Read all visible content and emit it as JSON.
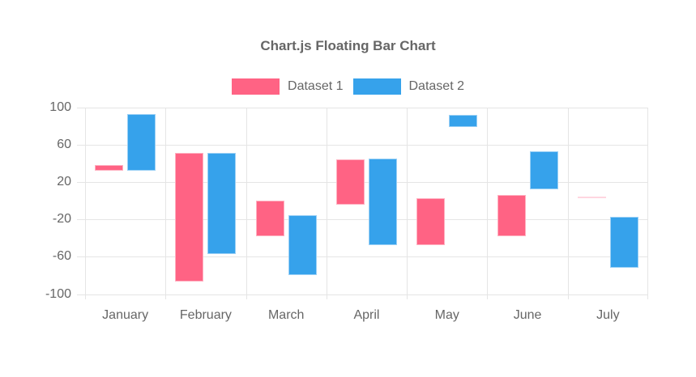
{
  "chart_data": {
    "type": "bar",
    "variant": "floating",
    "title": "Chart.js Floating Bar Chart",
    "categories": [
      "January",
      "February",
      "March",
      "April",
      "May",
      "June",
      "July"
    ],
    "series": [
      {
        "name": "Dataset 1",
        "color": "#FF6384",
        "border_color": "#ffb1c1",
        "values": [
          [
            32,
            38
          ],
          [
            -87,
            51
          ],
          [
            -38,
            0
          ],
          [
            -4,
            44
          ],
          [
            -48,
            3
          ],
          [
            -38,
            6
          ],
          [
            3,
            4
          ]
        ]
      },
      {
        "name": "Dataset 2",
        "color": "#36A2EB",
        "border_color": "#9bd0f5",
        "values": [
          [
            32,
            93
          ],
          [
            -57,
            51
          ],
          [
            -80,
            -16
          ],
          [
            -48,
            45
          ],
          [
            79,
            92
          ],
          [
            12,
            53
          ],
          [
            -72,
            -17
          ]
        ]
      }
    ],
    "ylim": [
      -100,
      100
    ],
    "yticks": [
      100,
      60,
      20,
      -20,
      -60,
      -100
    ],
    "grid": true,
    "legend_position": "top",
    "background_color": "#ffffff",
    "axis_text_color": "#666666",
    "grid_color": "#e5e5e5"
  }
}
